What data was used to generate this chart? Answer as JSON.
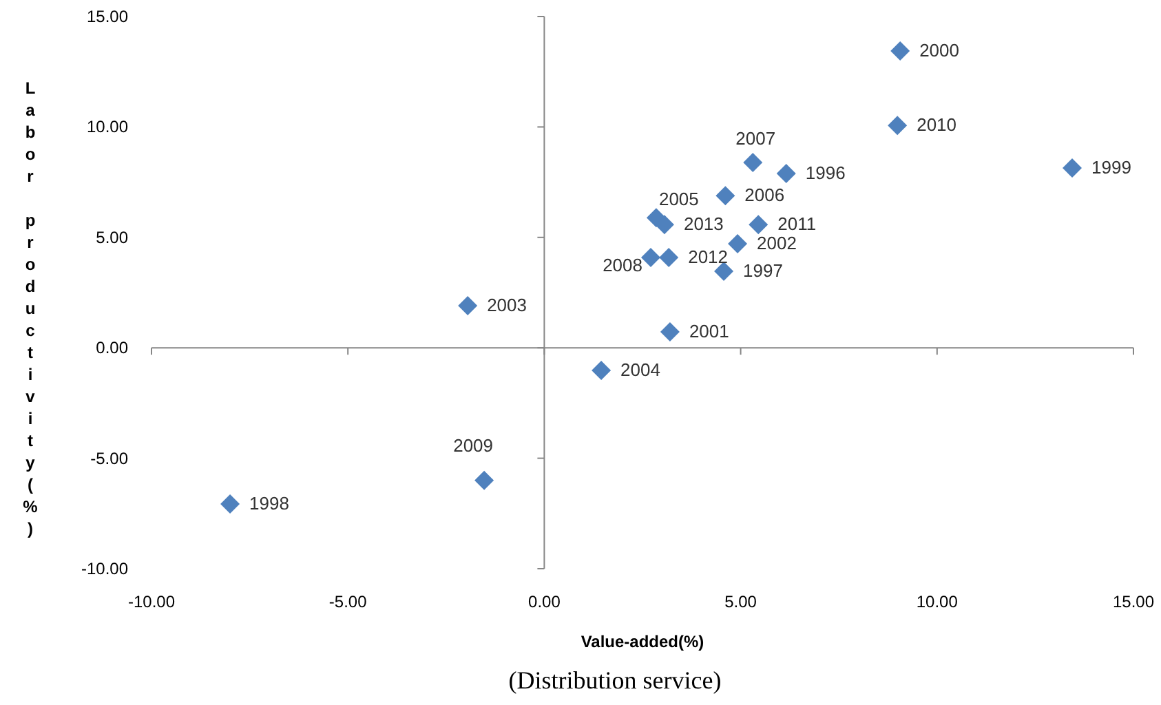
{
  "chart_data": {
    "type": "scatter",
    "xlabel": "Value-added(%)",
    "ylabel": "Labor productivity(%)",
    "x": [
      6.16,
      4.57,
      -8.0,
      13.44,
      9.06,
      3.2,
      4.92,
      -1.95,
      1.45,
      2.85,
      4.61,
      5.31,
      2.71,
      -1.53,
      8.99,
      5.45,
      3.17,
      3.06
    ],
    "series": [
      {
        "color": "#4f81bd",
        "values": [
          7.89,
          3.47,
          -7.07,
          8.14,
          13.44,
          0.72,
          4.71,
          1.91,
          -1.02,
          5.89,
          6.89,
          8.39,
          4.09,
          -6.0,
          10.07,
          5.58,
          4.09,
          5.58
        ]
      }
    ],
    "annotations": [
      {
        "text": "1996",
        "x": 6.16,
        "y": 7.89
      },
      {
        "text": "1997",
        "x": 4.57,
        "y": 3.47
      },
      {
        "text": "1998",
        "x": -8.0,
        "y": -7.07
      },
      {
        "text": "1999",
        "x": 13.44,
        "y": 8.14
      },
      {
        "text": "2000",
        "x": 9.06,
        "y": 13.44
      },
      {
        "text": "2001",
        "x": 3.2,
        "y": 0.72
      },
      {
        "text": "2002",
        "x": 4.92,
        "y": 4.71
      },
      {
        "text": "2003",
        "x": -1.95,
        "y": 1.91
      },
      {
        "text": "2004",
        "x": 1.45,
        "y": -1.02
      },
      {
        "text": "2005",
        "x": 2.85,
        "y": 5.89
      },
      {
        "text": "2006",
        "x": 4.61,
        "y": 6.89
      },
      {
        "text": "2007",
        "x": 5.31,
        "y": 8.39
      },
      {
        "text": "2008",
        "x": 2.71,
        "y": 4.09
      },
      {
        "text": "2009",
        "x": -1.53,
        "y": -6.0
      },
      {
        "text": "2010",
        "x": 8.99,
        "y": 10.07
      },
      {
        "text": "2011",
        "x": 5.45,
        "y": 5.58
      },
      {
        "text": "2012",
        "x": 3.17,
        "y": 4.09
      },
      {
        "text": "2013",
        "x": 3.06,
        "y": 5.58
      },
      "(Distribution service)"
    ],
    "xlim": [
      -10,
      15
    ],
    "ylim": [
      -10,
      15
    ],
    "xticks": [
      {
        "value": -10,
        "label": "-10.00"
      },
      {
        "value": -5,
        "label": "-5.00"
      },
      {
        "value": 0,
        "label": "0.00"
      },
      {
        "value": 5,
        "label": "5.00"
      },
      {
        "value": 10,
        "label": "10.00"
      },
      {
        "value": 15,
        "label": "15.00"
      }
    ],
    "yticks": [
      {
        "value": -10,
        "label": "-10.00"
      },
      {
        "value": -5,
        "label": "-5.00"
      },
      {
        "value": 0,
        "label": "0.00"
      },
      {
        "value": 5,
        "label": "5.00"
      },
      {
        "value": 10,
        "label": "10.00"
      },
      {
        "value": 15,
        "label": "15.00"
      }
    ],
    "marker": "diamond"
  }
}
